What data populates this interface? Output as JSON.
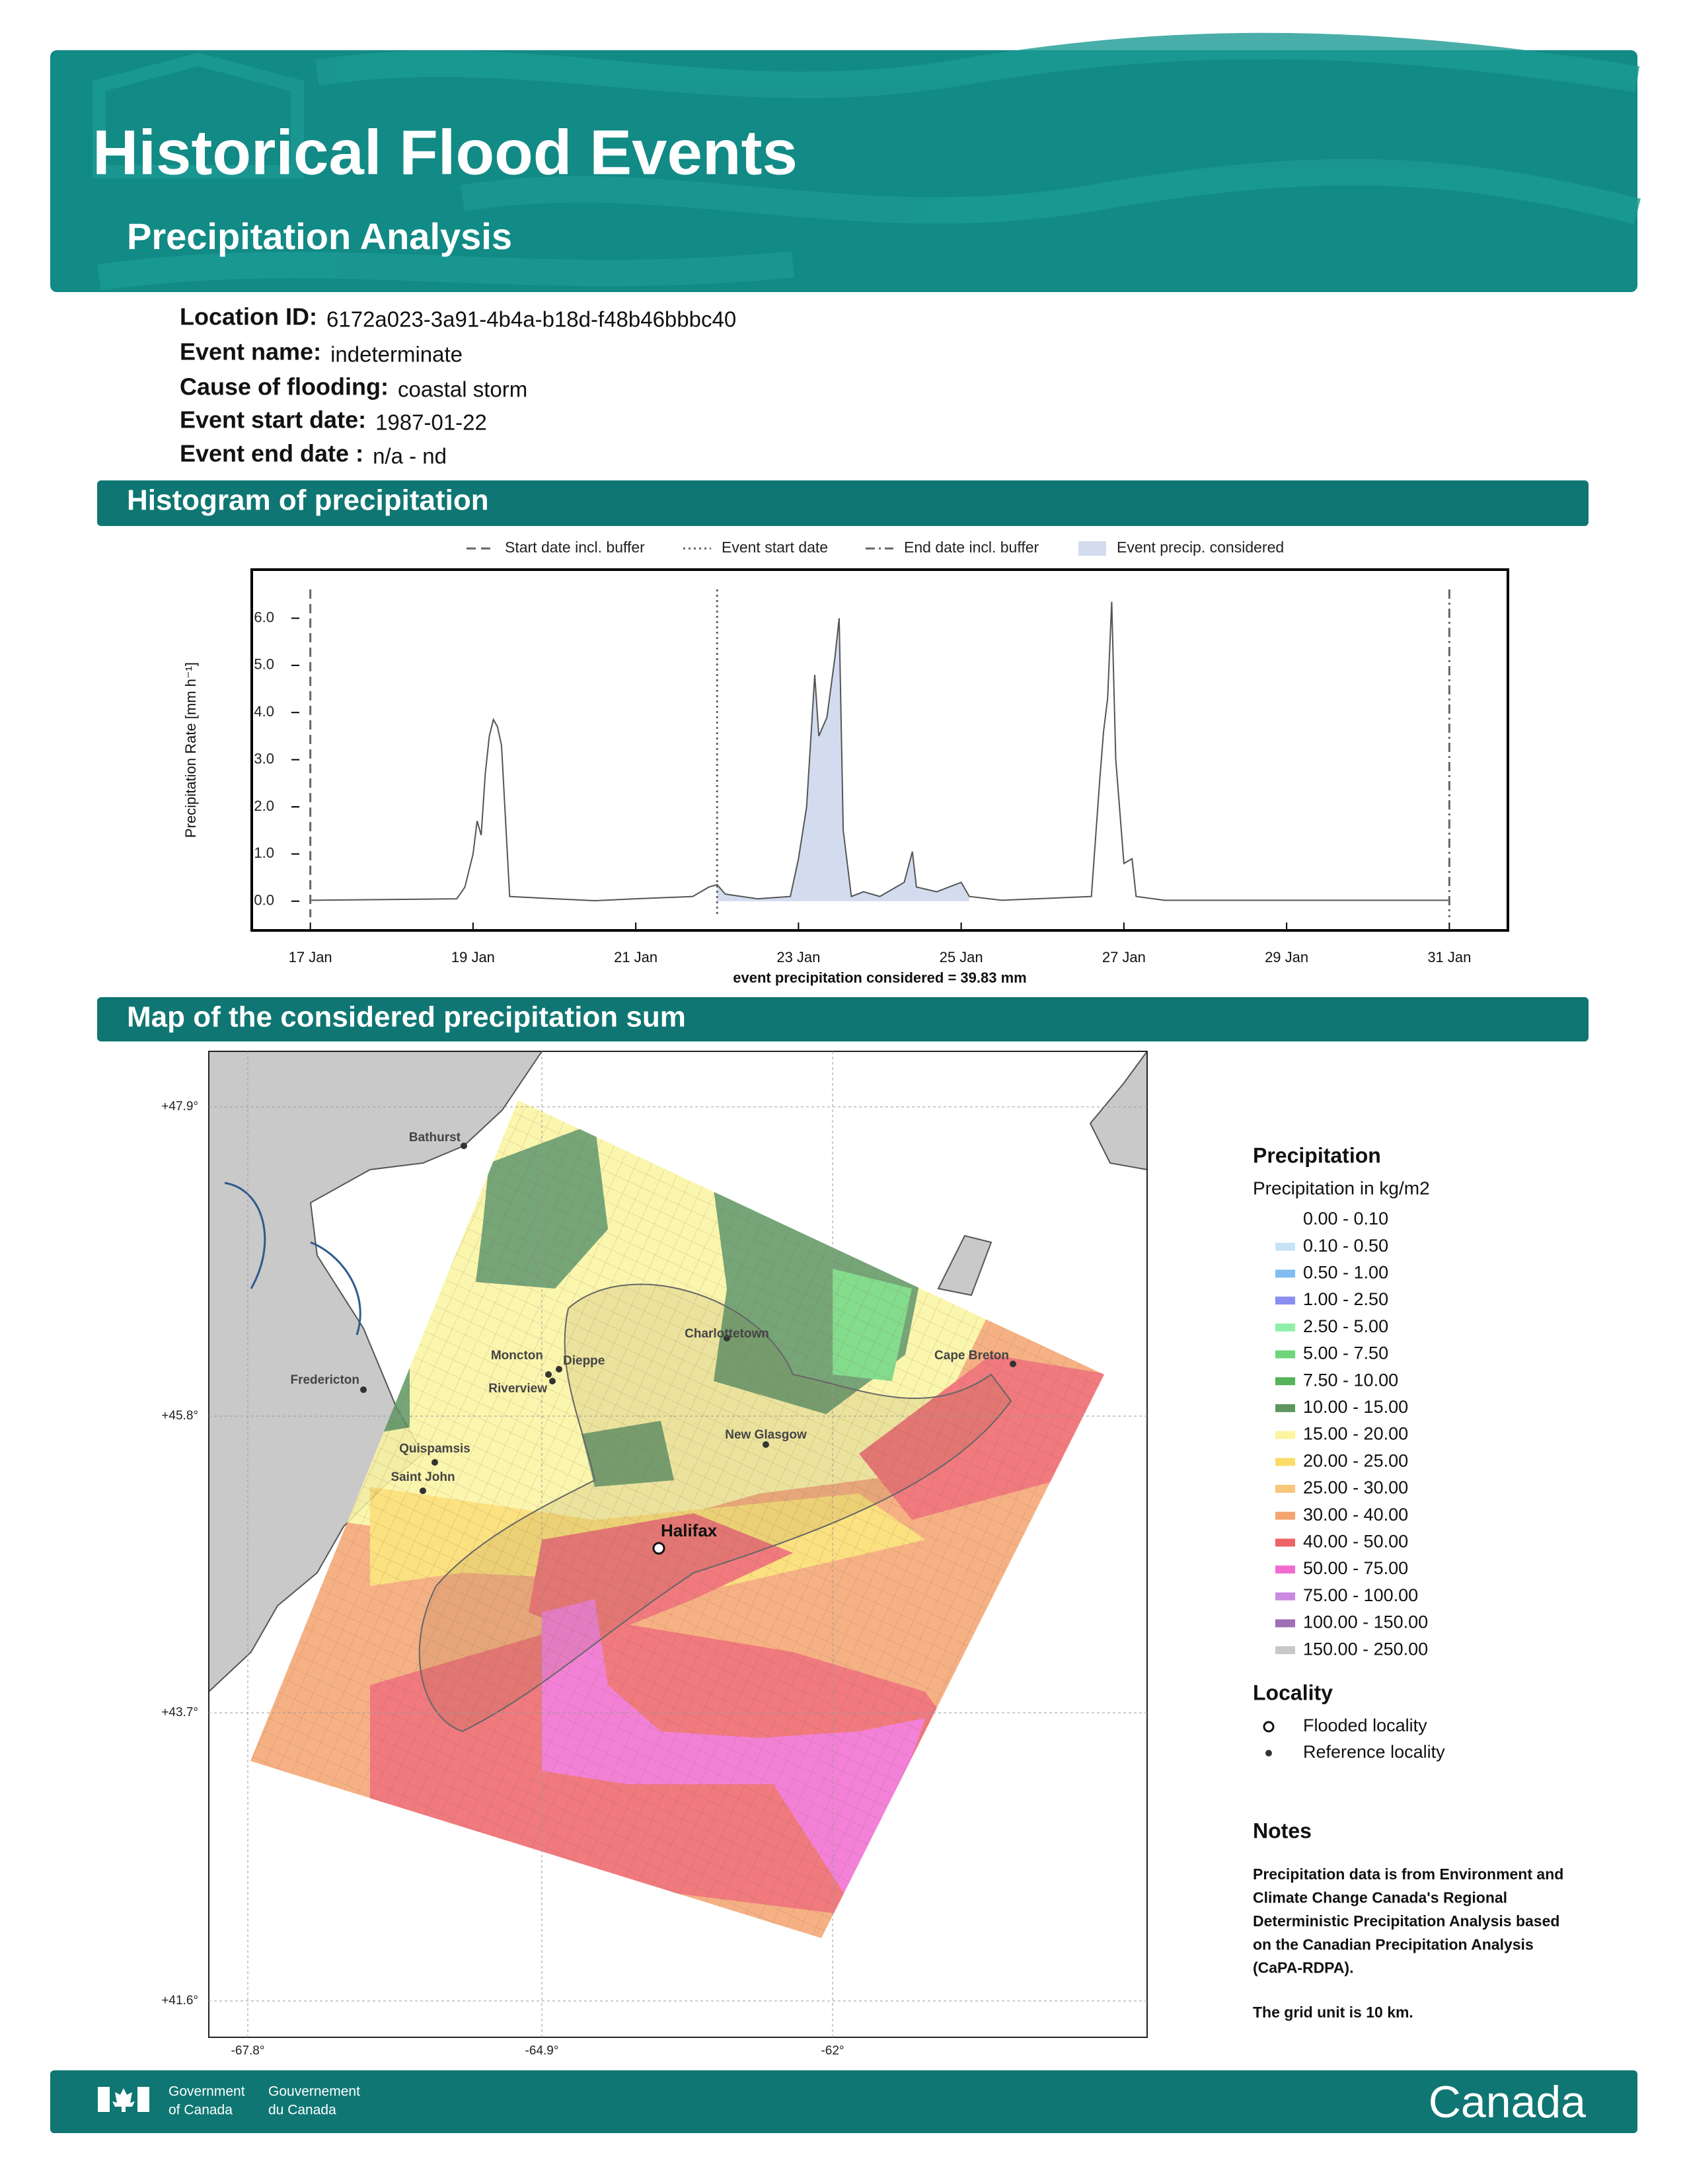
{
  "header": {
    "title": "Historical Flood Events",
    "subtitle": "Precipitation Analysis"
  },
  "fields": [
    {
      "label": "Location ID:",
      "value": "6172a023-3a91-4b4a-b18d-f48b46bbbc40"
    },
    {
      "label": "Event name:",
      "value": "indeterminate"
    },
    {
      "label": "Cause of flooding:",
      "value": "coastal storm"
    },
    {
      "label": "Event start date:",
      "value": "1987-01-22"
    },
    {
      "label": "Event end date :",
      "value": "n/a - nd"
    }
  ],
  "sections": [
    "Histogram of precipitation",
    "Map of the considered precipitation sum"
  ],
  "chart_data": {
    "type": "line",
    "ylabel": "Precipitation Rate [mm h⁻¹]",
    "xlabel": "event precipitation considered = 39.83 mm",
    "color": "#555555",
    "x": [
      17,
      18.8,
      18.9,
      19.0,
      19.05,
      19.1,
      19.15,
      19.2,
      19.25,
      19.3,
      19.35,
      19.45,
      20,
      20.5,
      21,
      21.7,
      21.9,
      22,
      22.1,
      22.5,
      22.9,
      23.0,
      23.1,
      23.2,
      23.25,
      23.35,
      23.45,
      23.5,
      23.55,
      23.65,
      23.8,
      24.0,
      24.2,
      24.3,
      24.4,
      24.45,
      24.7,
      25.0,
      25.1,
      25.5,
      26.6,
      26.7,
      26.75,
      26.8,
      26.85,
      26.9,
      27.0,
      27.1,
      27.15,
      27.5,
      31
    ],
    "values": [
      0.02,
      0.05,
      0.3,
      1.0,
      1.7,
      1.4,
      2.7,
      3.5,
      3.85,
      3.7,
      3.3,
      0.1,
      0.05,
      0.01,
      0.05,
      0.1,
      0.3,
      0.35,
      0.15,
      0.05,
      0.1,
      0.9,
      2.0,
      4.8,
      3.5,
      3.9,
      5.2,
      6.0,
      1.5,
      0.1,
      0.2,
      0.1,
      0.3,
      0.4,
      1.05,
      0.3,
      0.2,
      0.4,
      0.1,
      0.02,
      0.1,
      2.5,
      3.6,
      4.3,
      6.35,
      3.0,
      0.8,
      0.9,
      0.1,
      0.02,
      0.02
    ],
    "area": {
      "name": "Event precip. considered",
      "color": "#d3dcef",
      "from": 22,
      "to": 25.1
    },
    "vlines": [
      {
        "name": "Start date incl. buffer",
        "x": 17,
        "dash": "dashed"
      },
      {
        "name": "Event start date",
        "x": 22,
        "dash": "dotted"
      },
      {
        "name": "End date incl. buffer",
        "x": 31,
        "dash": "dashdot"
      }
    ],
    "xlim": [
      16.28,
      31.72
    ],
    "ylim": [
      -0.62,
      7.03
    ],
    "xticks": [
      {
        "value": 17,
        "label": "17 Jan"
      },
      {
        "value": 19,
        "label": "19 Jan"
      },
      {
        "value": 21,
        "label": "21 Jan"
      },
      {
        "value": 23,
        "label": "23 Jan"
      },
      {
        "value": 25,
        "label": "25 Jan"
      },
      {
        "value": 27,
        "label": "27 Jan"
      },
      {
        "value": 29,
        "label": "29 Jan"
      },
      {
        "value": 31,
        "label": "31 Jan"
      }
    ],
    "yticks": [
      {
        "value": 0,
        "label": "0.0"
      },
      {
        "value": 1,
        "label": "1.0"
      },
      {
        "value": 2,
        "label": "2.0"
      },
      {
        "value": 3,
        "label": "3.0"
      },
      {
        "value": 4,
        "label": "4.0"
      },
      {
        "value": 5,
        "label": "5.0"
      },
      {
        "value": 6,
        "label": "6.0"
      }
    ]
  },
  "map": {
    "lat_ticks": [
      "+47.9°",
      "+45.8°",
      "+43.7°",
      "+41.6°"
    ],
    "lon_ticks": [
      "-67.8°",
      "-64.9°",
      "-62°"
    ],
    "places": [
      "Bathurst",
      "Moncton",
      "Dieppe",
      "Riverview",
      "Fredericton",
      "Charlottetown",
      "Cape Breton",
      "New Glasgow",
      "Quispamsis",
      "Saint John"
    ],
    "flooded": "Halifax"
  },
  "legend": {
    "title": "Precipitation",
    "subtitle": "Precipitation in kg/m2",
    "entries": [
      {
        "label": "0.00 - 0.10",
        "color": "none"
      },
      {
        "label": "0.10 - 0.50",
        "color": "#c6e3f7"
      },
      {
        "label": "0.50 - 1.00",
        "color": "#7fbdf0"
      },
      {
        "label": "1.00 - 2.50",
        "color": "#8a8fef"
      },
      {
        "label": "2.50 - 5.00",
        "color": "#8ef0a6"
      },
      {
        "label": "5.00 - 7.50",
        "color": "#6fd67a"
      },
      {
        "label": "7.50 - 10.00",
        "color": "#55b35a"
      },
      {
        "label": "10.00 - 15.00",
        "color": "#5f9660"
      },
      {
        "label": "15.00 - 20.00",
        "color": "#fbf5a0"
      },
      {
        "label": "20.00 - 25.00",
        "color": "#fbdc6a"
      },
      {
        "label": "25.00 - 30.00",
        "color": "#f8c77a"
      },
      {
        "label": "30.00 - 40.00",
        "color": "#f4a46f"
      },
      {
        "label": "40.00 - 50.00",
        "color": "#ee6368"
      },
      {
        "label": "50.00 - 75.00",
        "color": "#f06cd0"
      },
      {
        "label": "75.00 - 100.00",
        "color": "#c98ae0"
      },
      {
        "label": "100.00 - 150.00",
        "color": "#9e6fb5"
      },
      {
        "label": "150.00 - 250.00",
        "color": "#c8c8c8"
      }
    ],
    "locality_title": "Locality",
    "locality": [
      "Flooded locality",
      "Reference locality"
    ],
    "notes_title": "Notes",
    "notes": [
      "Precipitation data is from Environment and",
      "Climate Change Canada's Regional",
      "Deterministic Precipitation Analysis based",
      "on the Canadian Precipitation Analysis",
      "(CaPA-RDPA).",
      "The grid unit is 10 km."
    ]
  },
  "footer": {
    "gov_en": [
      "Government",
      "of Canada"
    ],
    "gov_fr": [
      "Gouvernement",
      "du Canada"
    ],
    "wordmark": "Canada"
  }
}
